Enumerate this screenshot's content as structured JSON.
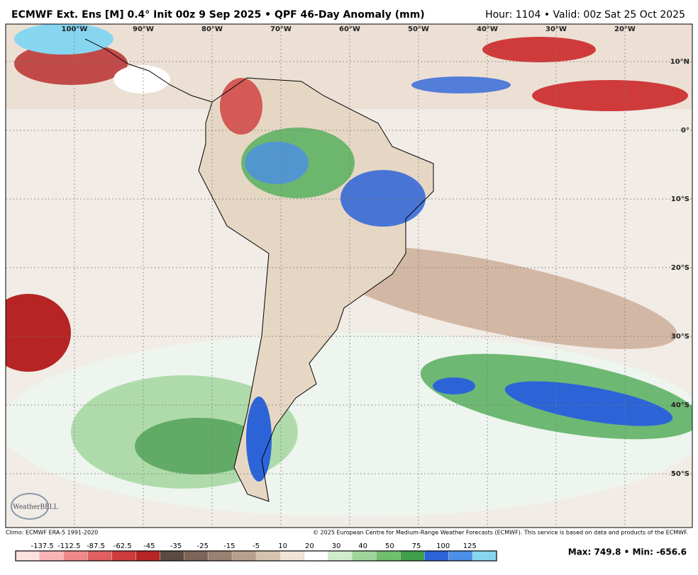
{
  "header": {
    "title": "ECMWF Ext. Ens [M] 0.4° Init 00z 9 Sep 2025 • QPF 46-Day Anomaly (mm)",
    "valid": "Hour: 1104 • Valid: 00z Sat 25 Oct 2025"
  },
  "map": {
    "lon_labels": [
      "100°W",
      "90°W",
      "80°W",
      "70°W",
      "60°W",
      "50°W",
      "40°W",
      "30°W",
      "20°W"
    ],
    "lat_labels": [
      "10°N",
      "0°",
      "10°S",
      "20°S",
      "30°S",
      "40°S",
      "50°S"
    ],
    "logo": "WeatherBELL"
  },
  "footer": {
    "climo": "Climo: ECMWF ERA-5 1991-2020",
    "copyright": "© 2025 European Centre for Medium-Range Weather Forecasts (ECMWF). This service is based on data and products of the ECMWF."
  },
  "colorbar": {
    "labels": [
      "-137.5",
      "-112.5",
      "-87.5",
      "-62.5",
      "-45",
      "-35",
      "-25",
      "-15",
      "-5",
      "10",
      "20",
      "30",
      "40",
      "50",
      "75",
      "100",
      "125"
    ],
    "colors": [
      "#fde0e0",
      "#f8b4b4",
      "#ee8a8a",
      "#e06060",
      "#cf3b3b",
      "#b62424",
      "#5c4a42",
      "#7c6558",
      "#9a8070",
      "#b8a08c",
      "#d6c2ae",
      "#efe4d6",
      "#ffffff",
      "#cfeccb",
      "#9fd59a",
      "#6fbf6d",
      "#3f9f4a",
      "#2c64d8",
      "#4c8fe8",
      "#86d6f0"
    ],
    "max": "Max: 749.8 • Min: -656.6"
  }
}
